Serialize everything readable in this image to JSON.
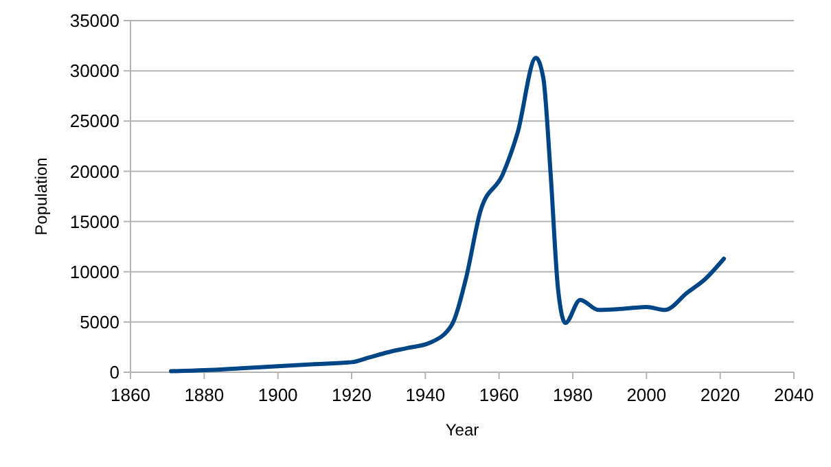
{
  "chart_data": {
    "type": "line",
    "xlabel": "Year",
    "ylabel": "Population",
    "xlim": [
      1860,
      2040
    ],
    "xticks": [
      1860,
      1880,
      1900,
      1920,
      1940,
      1960,
      1980,
      2000,
      2020,
      2040
    ],
    "ylim": [
      0,
      35000
    ],
    "yticks": [
      0,
      5000,
      10000,
      15000,
      20000,
      25000,
      30000,
      35000
    ],
    "grid": "y",
    "marker": "none",
    "line_style": "solid",
    "series": [
      {
        "color": "#004586",
        "x": [
          1871,
          1880,
          1890,
          1900,
          1910,
          1920,
          1925,
          1930,
          1935,
          1941,
          1947,
          1951,
          1955,
          1961,
          1965,
          1970,
          1972,
          1974,
          1976,
          1978,
          1982,
          1987,
          1993,
          2000,
          2005,
          2011,
          2016,
          2021
        ],
        "values": [
          100,
          200,
          400,
          600,
          800,
          1000,
          1500,
          2000,
          2400,
          2900,
          4600,
          9300,
          16100,
          19700,
          23800,
          31300,
          29300,
          19700,
          8300,
          4900,
          7200,
          6200,
          6300,
          6500,
          6200,
          7900,
          9300,
          11300
        ]
      }
    ]
  }
}
